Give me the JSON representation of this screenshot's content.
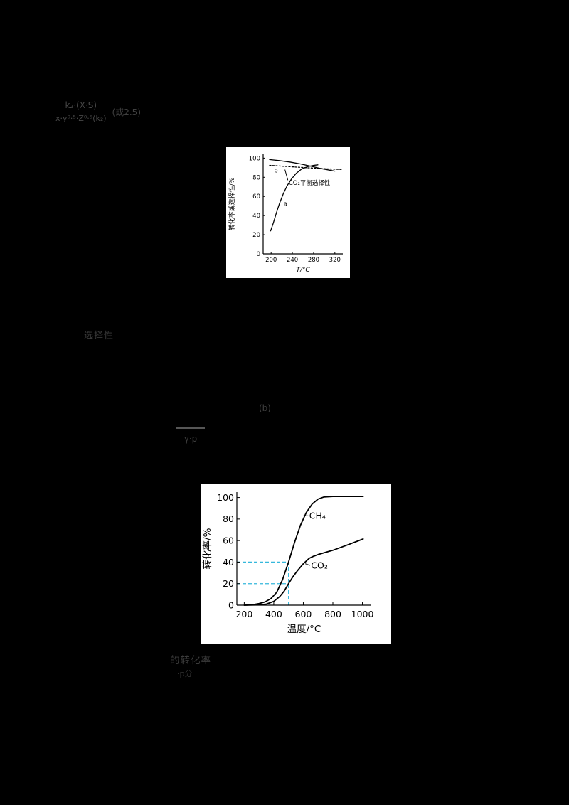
{
  "page": {
    "background": "#000000",
    "paper": "#ffffff"
  },
  "faint_fragments": {
    "formula_numerator": "k₂·(X·S)",
    "formula_denominator": "x·y⁰·⁵·Z⁰·⁵(k₂)",
    "formula_side": "(或2.5)",
    "note_mid": "选择性",
    "note_b": "(b)",
    "small_fraction_label": "γ·p",
    "note_bottom_line1": "的转化率",
    "note_bottom_line2": "·p分"
  },
  "chart_data": [
    {
      "type": "line",
      "title": "",
      "xlabel": "T/°C",
      "ylabel": "转化率或选择性/%",
      "xlim": [
        185,
        335
      ],
      "ylim": [
        0,
        104
      ],
      "x_ticks": [
        200,
        240,
        280,
        320
      ],
      "y_ticks": [
        0,
        20,
        40,
        60,
        80,
        100
      ],
      "grid": false,
      "legend": "inline-annotations",
      "series": [
        {
          "name": "a",
          "style": "solid",
          "points": [
            [
              199,
              24
            ],
            [
              204,
              32
            ],
            [
              210,
              43
            ],
            [
              216,
              53
            ],
            [
              223,
              63
            ],
            [
              230,
              71
            ],
            [
              238,
              78
            ],
            [
              247,
              84
            ],
            [
              257,
              88.5
            ],
            [
              268,
              91
            ],
            [
              280,
              92.5
            ],
            [
              288,
              93
            ]
          ]
        },
        {
          "name": "b",
          "style": "solid",
          "points": [
            [
              197,
              98.5
            ],
            [
              215,
              97.5
            ],
            [
              235,
              96
            ],
            [
              255,
              94
            ],
            [
              275,
              91.5
            ],
            [
              295,
              89
            ],
            [
              320,
              86.5
            ]
          ]
        },
        {
          "name": "CO₂平衡选择性",
          "style": "dotted",
          "points": [
            [
              197,
              92.5
            ],
            [
              230,
              91.3
            ],
            [
              265,
              90
            ],
            [
              300,
              89
            ],
            [
              333,
              88.2
            ]
          ]
        }
      ],
      "annotations": [
        {
          "text": "b",
          "x": 209,
          "y": 85,
          "anchor": "middle"
        },
        {
          "text": "a",
          "x": 227,
          "y": 50,
          "anchor": "middle"
        },
        {
          "text": "CO₂平衡选择性",
          "x": 233,
          "y": 72,
          "anchor": "start",
          "leader": [
            231.5,
            77,
            226,
            88
          ]
        }
      ]
    },
    {
      "type": "line",
      "title": "",
      "xlabel": "温度/°C",
      "ylabel": "转化率/%",
      "xlim": [
        150,
        1060
      ],
      "ylim": [
        0,
        105
      ],
      "x_ticks": [
        200,
        400,
        600,
        800,
        1000
      ],
      "y_ticks": [
        0,
        20,
        40,
        60,
        80,
        100
      ],
      "grid": false,
      "series": [
        {
          "name": "CH₄",
          "style": "solid",
          "points": [
            [
              200,
              0
            ],
            [
              260,
              0.5
            ],
            [
              300,
              1.5
            ],
            [
              340,
              3
            ],
            [
              380,
              6
            ],
            [
              420,
              12
            ],
            [
              460,
              24
            ],
            [
              500,
              40
            ],
            [
              540,
              58
            ],
            [
              580,
              74
            ],
            [
              620,
              86
            ],
            [
              660,
              94
            ],
            [
              700,
              98.5
            ],
            [
              740,
              100.5
            ],
            [
              800,
              101
            ],
            [
              900,
              101
            ],
            [
              1005,
              101
            ]
          ]
        },
        {
          "name": "CO₂",
          "style": "solid",
          "points": [
            [
              200,
              0
            ],
            [
              300,
              0.3
            ],
            [
              350,
              1
            ],
            [
              400,
              3.5
            ],
            [
              440,
              8
            ],
            [
              470,
              13
            ],
            [
              500,
              20
            ],
            [
              530,
              26.5
            ],
            [
              560,
              32
            ],
            [
              600,
              38.5
            ],
            [
              640,
              43.5
            ],
            [
              670,
              45.5
            ],
            [
              700,
              47
            ],
            [
              750,
              49
            ],
            [
              800,
              51
            ],
            [
              900,
              56
            ],
            [
              1005,
              61.5
            ]
          ]
        }
      ],
      "guides": {
        "color": "#35b8dc",
        "x": 500,
        "y_values": [
          20,
          40
        ]
      },
      "annotations": [
        {
          "text": "CH₄",
          "x": 640,
          "y": 83,
          "anchor": "start",
          "valign": "middle",
          "leader": [
            600,
            83,
            633,
            83
          ]
        },
        {
          "text": "CO₂",
          "x": 652,
          "y": 37,
          "anchor": "start",
          "valign": "middle",
          "leader": [
            613,
            38.5,
            645,
            37
          ]
        }
      ]
    }
  ]
}
